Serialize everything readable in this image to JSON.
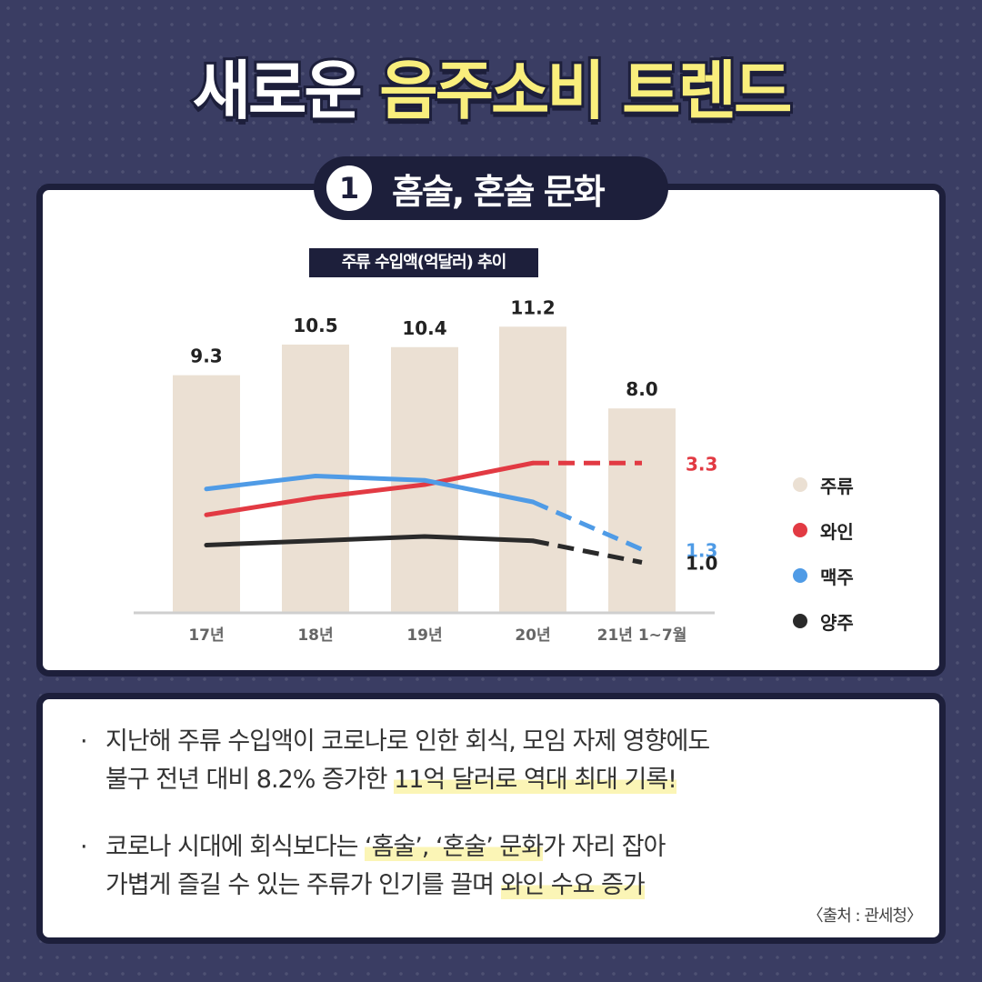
{
  "header": {
    "title_white": "새로운",
    "title_highlight": "음주소비 트렌드"
  },
  "section": {
    "number": "1",
    "label": "홈술, 혼술 문화"
  },
  "chart_data": {
    "type": "bar+line",
    "title": "주류 수입액(억달러) 추이",
    "categories": [
      "17년",
      "18년",
      "19년",
      "20년",
      "21년 1~7월"
    ],
    "bars": {
      "name": "주류",
      "color": "#ebe0d3",
      "values": [
        9.3,
        10.5,
        10.4,
        11.2,
        8.0
      ],
      "labels": [
        "9.3",
        "10.5",
        "10.4",
        "11.2",
        "8.0"
      ]
    },
    "series": [
      {
        "name": "와인",
        "color": "#e23a43",
        "values": [
          2.1,
          2.5,
          2.8,
          3.3,
          3.3
        ],
        "end_label": "3.3",
        "dashed_last_segment": true
      },
      {
        "name": "맥주",
        "color": "#4f9be6",
        "values": [
          2.7,
          3.0,
          2.9,
          2.4,
          1.3
        ],
        "end_label": "1.3",
        "dashed_last_segment": true
      },
      {
        "name": "양주",
        "color": "#2a2a2a",
        "values": [
          1.4,
          1.5,
          1.6,
          1.5,
          1.0
        ],
        "end_label": "1.0",
        "dashed_last_segment": true
      }
    ],
    "legend_position": "right",
    "grid": false
  },
  "legend": [
    {
      "label": "주류",
      "color": "#ebe0d3"
    },
    {
      "label": "와인",
      "color": "#e23a43"
    },
    {
      "label": "맥주",
      "color": "#4f9be6"
    },
    {
      "label": "양주",
      "color": "#2a2a2a"
    }
  ],
  "bullets": [
    {
      "line1": "지난해 주류 수입액이 코로나로 인한 회식, 모임 자제 영향에도",
      "line2_plain": "불구 전년 대비 8.2% 증가한 ",
      "line2_highlight": "11억 달러로 역대 최대 기록!"
    },
    {
      "line1_plain1": "코로나 시대에 회식보다는 ",
      "line1_highlight": "‘홈술’, ‘혼술’ 문화",
      "line1_plain2": "가 자리 잡아",
      "line2_plain": "가볍게 즐길 수 있는 주류가 인기를 끌며 ",
      "line2_highlight": "와인 수요 증가"
    }
  ],
  "source": "〈출처 : 관세청〉"
}
